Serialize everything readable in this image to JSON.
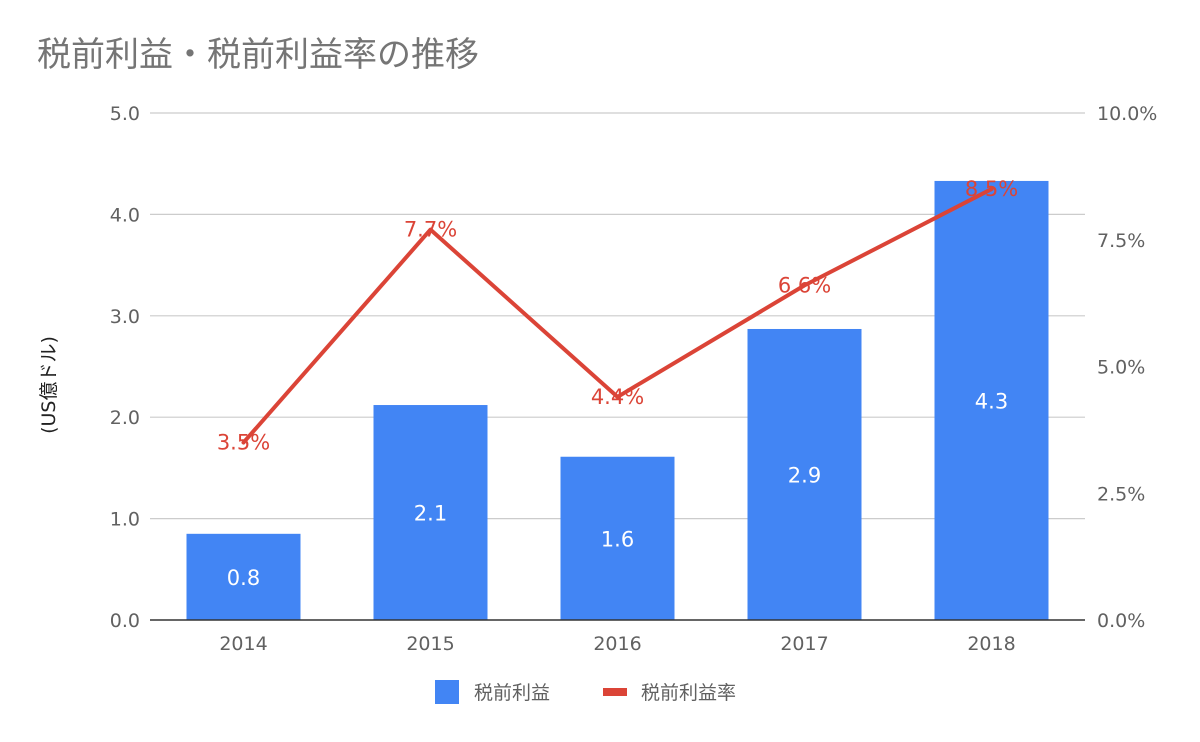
{
  "chart_data": {
    "type": "bar",
    "title": "税前利益・税前利益率の推移",
    "ylabel": "(US億ドル)",
    "categories": [
      "2014",
      "2015",
      "2016",
      "2017",
      "2018"
    ],
    "series": [
      {
        "name": "税前利益",
        "type": "bar",
        "axis": "left",
        "color": "#4285f4",
        "values": [
          0.85,
          2.12,
          1.61,
          2.87,
          4.33
        ],
        "labels": [
          "0.8",
          "2.1",
          "1.6",
          "2.9",
          "4.3"
        ]
      },
      {
        "name": "税前利益率",
        "type": "line",
        "axis": "right",
        "color": "#db4437",
        "values": [
          3.5,
          7.7,
          4.4,
          6.6,
          8.5
        ],
        "labels": [
          "3.5%",
          "7.7%",
          "4.4%",
          "6.6%",
          "8.5%"
        ]
      }
    ],
    "y_left": {
      "ylim": [
        0,
        5
      ],
      "ticks": [
        "0.0",
        "1.0",
        "2.0",
        "3.0",
        "4.0",
        "5.0"
      ]
    },
    "y_right": {
      "ylim": [
        0,
        10
      ],
      "ticks": [
        "0.0%",
        "2.5%",
        "5.0%",
        "7.5%",
        "10.0%"
      ]
    },
    "grid": true,
    "legend": "bottom"
  }
}
